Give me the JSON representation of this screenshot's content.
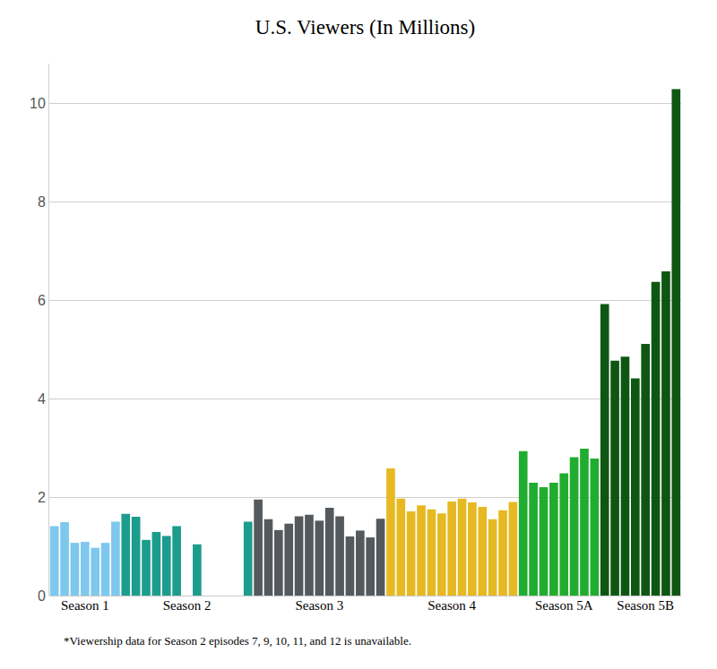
{
  "chart_data": {
    "type": "bar",
    "title": "U.S. Viewers (In Millions)",
    "categories": [
      null,
      null,
      null,
      "Season 1",
      null,
      null,
      null,
      null,
      null,
      null,
      null,
      null,
      null,
      "Season 2",
      null,
      null,
      null,
      null,
      null,
      null,
      null,
      null,
      null,
      null,
      null,
      null,
      "Season 3",
      null,
      null,
      null,
      null,
      null,
      null,
      null,
      null,
      null,
      null,
      null,
      null,
      "Season 4",
      null,
      null,
      null,
      null,
      null,
      null,
      null,
      null,
      null,
      null,
      "Season 5A",
      null,
      null,
      null,
      null,
      null,
      null,
      null,
      "Season 5B",
      null,
      null,
      null
    ],
    "values": [
      1.41,
      1.49,
      1.07,
      1.09,
      0.97,
      1.07,
      1.5,
      1.66,
      1.6,
      1.13,
      1.29,
      1.21,
      1.41,
      null,
      1.04,
      null,
      null,
      null,
      null,
      1.5,
      1.95,
      1.55,
      1.33,
      1.46,
      1.61,
      1.64,
      1.52,
      1.78,
      1.61,
      1.2,
      1.32,
      1.18,
      1.56,
      2.58,
      1.97,
      1.71,
      1.83,
      1.75,
      1.67,
      1.91,
      1.97,
      1.89,
      1.8,
      1.55,
      1.73,
      1.9,
      2.93,
      2.29,
      2.2,
      2.29,
      2.48,
      2.81,
      2.98,
      2.78,
      5.92,
      4.77,
      4.85,
      4.41,
      5.11,
      6.37,
      6.58,
      10.28
    ],
    "colors": [
      "#7ec8ee",
      "#7ec8ee",
      "#7ec8ee",
      "#7ec8ee",
      "#7ec8ee",
      "#7ec8ee",
      "#7ec8ee",
      "#1c9c8c",
      "#1c9c8c",
      "#1c9c8c",
      "#1c9c8c",
      "#1c9c8c",
      "#1c9c8c",
      "#1c9c8c",
      "#1c9c8c",
      "#1c9c8c",
      "#1c9c8c",
      "#1c9c8c",
      "#1c9c8c",
      "#1c9c8c",
      "#54595e",
      "#54595e",
      "#54595e",
      "#54595e",
      "#54595e",
      "#54595e",
      "#54595e",
      "#54595e",
      "#54595e",
      "#54595e",
      "#54595e",
      "#54595e",
      "#54595e",
      "#e6b922",
      "#e6b922",
      "#e6b922",
      "#e6b922",
      "#e6b922",
      "#e6b922",
      "#e6b922",
      "#e6b922",
      "#e6b922",
      "#e6b922",
      "#e6b922",
      "#e6b922",
      "#e6b922",
      "#20ad2f",
      "#20ad2f",
      "#20ad2f",
      "#20ad2f",
      "#20ad2f",
      "#20ad2f",
      "#20ad2f",
      "#20ad2f",
      "#0e5713",
      "#0e5713",
      "#0e5713",
      "#0e5713",
      "#0e5713",
      "#0e5713",
      "#0e5713",
      "#0e5713"
    ],
    "ylim": [
      0,
      10.8
    ],
    "yticks": [
      0,
      2,
      4,
      6,
      8,
      10
    ],
    "grid": true,
    "annotations": [
      {
        "text": "*Viewership data for Season 2 episodes 7, 9, 10, 11, and 12 is unavailable."
      }
    ]
  }
}
